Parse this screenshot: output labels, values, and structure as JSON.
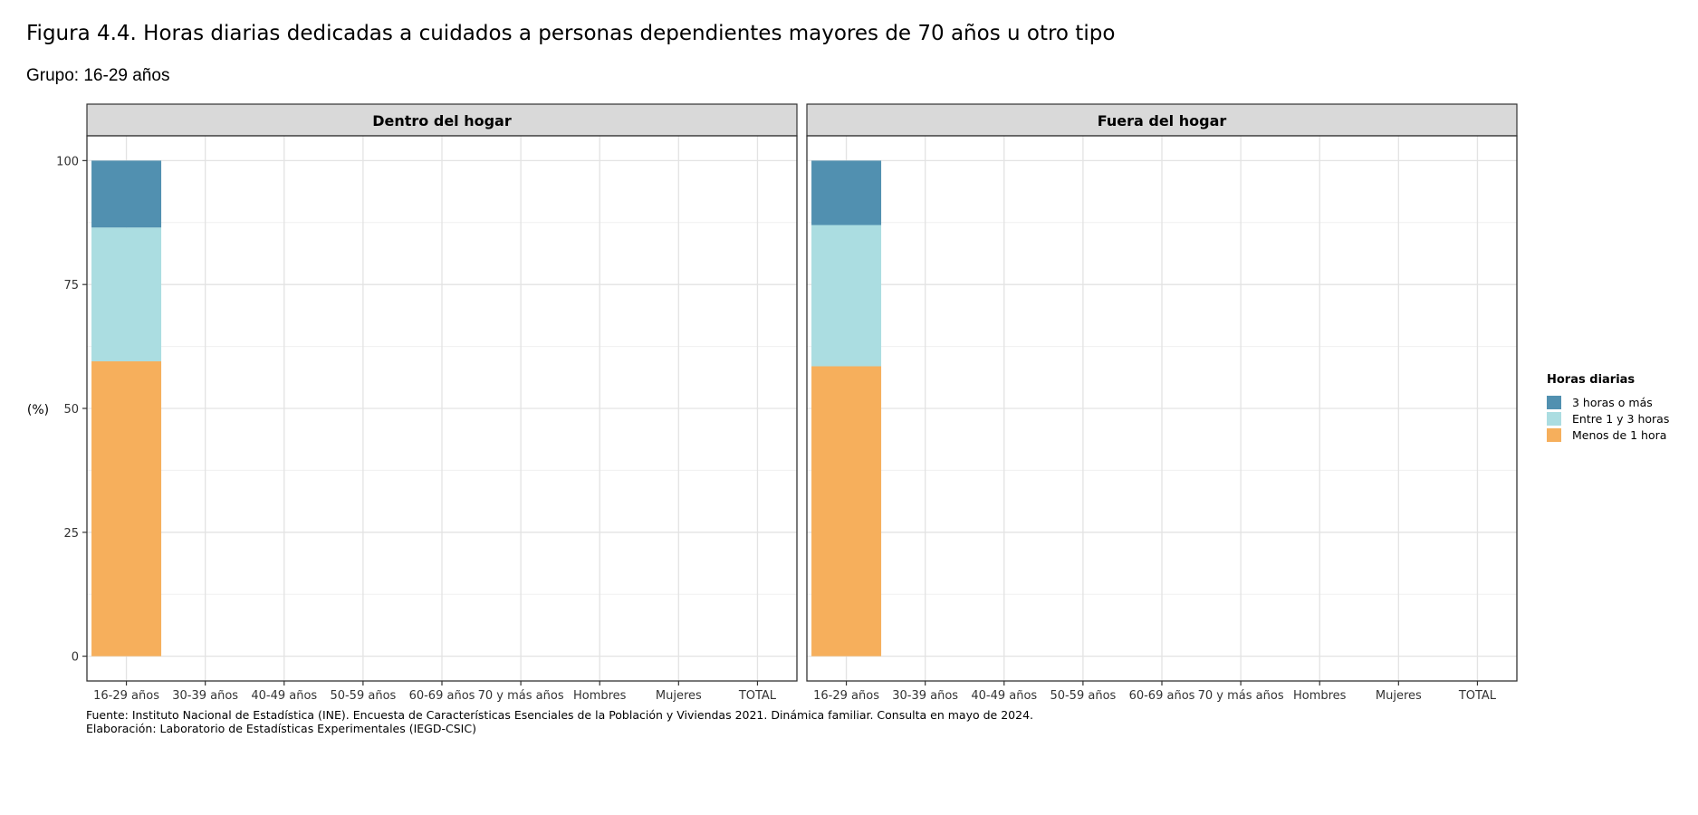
{
  "figure": {
    "title": "Figura 4.4. Horas diarias dedicadas a cuidados a personas dependientes mayores de 70 años u otro tipo",
    "subtitle": "Grupo: 16-29 años",
    "source": "Fuente: Instituto Nacional de Estadística (INE). Encuesta de Características Esenciales de la Población y Viviendas 2021. Dinámica familiar. Consulta en mayo de 2024.",
    "elaboration": "Elaboración: Laboratorio de Estadísticas Experimentales (IEGD-CSIC)"
  },
  "legend": {
    "title": "Horas diarias",
    "items": [
      {
        "label": "3 horas o más",
        "color": "#5190b0"
      },
      {
        "label": "Entre 1 y 3 horas",
        "color": "#abdde1"
      },
      {
        "label": "Menos de 1 hora",
        "color": "#f6af5c"
      }
    ]
  },
  "chart_data": {
    "type": "bar",
    "stacked": true,
    "ylabel": "(%)",
    "ylim": [
      -5,
      105
    ],
    "yticks": [
      0,
      25,
      50,
      75,
      100
    ],
    "grid": true,
    "legend_position": "right",
    "categories": [
      "16-29 años",
      "30-39 años",
      "40-49 años",
      "50-59 años",
      "60-69 años",
      "70 y más años",
      "Hombres",
      "Mujeres",
      "TOTAL"
    ],
    "series_order": [
      "Menos de 1 hora",
      "Entre 1 y 3 horas",
      "3 horas o más"
    ],
    "colors": {
      "3 horas o más": "#5190b0",
      "Entre 1 y 3 horas": "#abdde1",
      "Menos de 1 hora": "#f6af5c"
    },
    "panels": [
      {
        "title": "Dentro del hogar",
        "series": [
          {
            "name": "Menos de 1 hora",
            "values": [
              59.5,
              null,
              null,
              null,
              null,
              null,
              null,
              null,
              null
            ]
          },
          {
            "name": "Entre 1 y 3 horas",
            "values": [
              27.0,
              null,
              null,
              null,
              null,
              null,
              null,
              null,
              null
            ]
          },
          {
            "name": "3 horas o más",
            "values": [
              13.5,
              null,
              null,
              null,
              null,
              null,
              null,
              null,
              null
            ]
          }
        ]
      },
      {
        "title": "Fuera del hogar",
        "series": [
          {
            "name": "Menos de 1 hora",
            "values": [
              58.5,
              null,
              null,
              null,
              null,
              null,
              null,
              null,
              null
            ]
          },
          {
            "name": "Entre 1 y 3 horas",
            "values": [
              28.5,
              null,
              null,
              null,
              null,
              null,
              null,
              null,
              null
            ]
          },
          {
            "name": "3 horas o más",
            "values": [
              13.0,
              null,
              null,
              null,
              null,
              null,
              null,
              null,
              null
            ]
          }
        ]
      }
    ]
  }
}
